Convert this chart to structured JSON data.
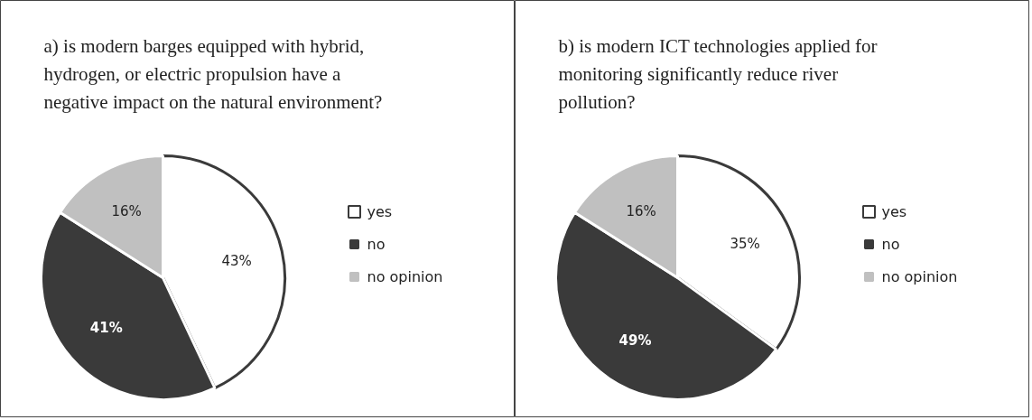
{
  "chart_data": [
    {
      "type": "pie",
      "title": "a)  is modern barges equipped with hybrid, hydrogen, or electric propulsion have a negative impact on the natural environment?",
      "categories": [
        "yes",
        "no",
        "no opinion"
      ],
      "values": [
        43,
        41,
        16
      ],
      "colors": [
        "#ffffff",
        "#3a3a3a",
        "#c0c0c0"
      ],
      "value_labels": [
        "43%",
        "41%",
        "16%"
      ],
      "legend": "right"
    },
    {
      "type": "pie",
      "title": "b)  is modern ICT technologies applied for monitoring significantly reduce river pollution?",
      "categories": [
        "yes",
        "no",
        "no opinion"
      ],
      "values": [
        35,
        49,
        16
      ],
      "colors": [
        "#ffffff",
        "#3a3a3a",
        "#c0c0c0"
      ],
      "value_labels": [
        "35%",
        "49%",
        "16%"
      ],
      "legend": "right"
    }
  ]
}
